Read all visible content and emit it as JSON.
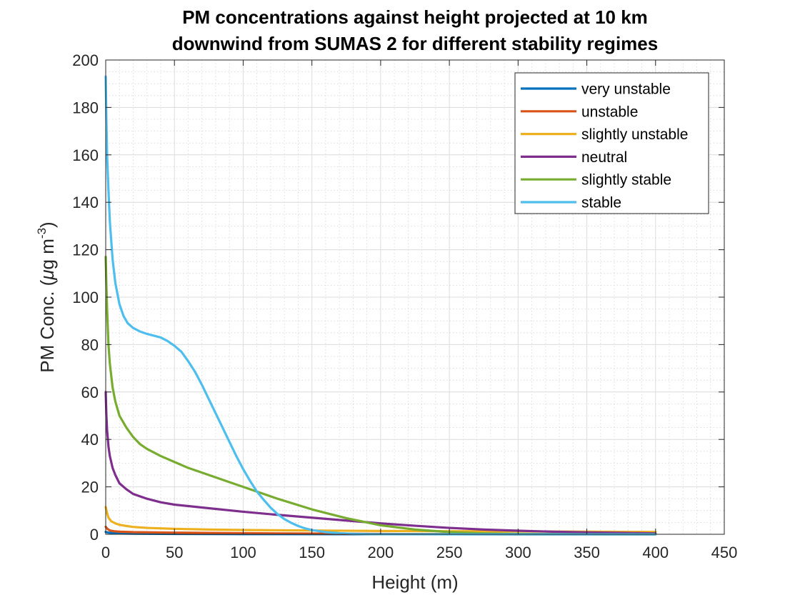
{
  "chart_data": {
    "type": "line",
    "title_line1": "PM concentrations against height projected at 10 km",
    "title_line2": "downwind from SUMAS 2 for different stability regimes",
    "xlabel": "Height (m)",
    "ylabel_main": "PM Conc. (",
    "ylabel_mu": "μ",
    "ylabel_unit": "g m",
    "ylabel_sup": "-3",
    "ylabel_close": ")",
    "xlim": [
      0,
      450
    ],
    "ylim": [
      0,
      200
    ],
    "x_ticks": [
      0,
      50,
      100,
      150,
      200,
      250,
      300,
      350,
      400,
      450
    ],
    "y_ticks": [
      0,
      20,
      40,
      60,
      80,
      100,
      120,
      140,
      160,
      180,
      200
    ],
    "grid": true,
    "minor_grid": true,
    "legend_position": "top-right",
    "series": [
      {
        "name": "very unstable",
        "color": "#0072BD",
        "points": [
          [
            0,
            1.0
          ],
          [
            2,
            0.7
          ],
          [
            5,
            0.5
          ],
          [
            10,
            0.35
          ],
          [
            20,
            0.25
          ],
          [
            50,
            0.15
          ],
          [
            100,
            0.08
          ],
          [
            200,
            0.03
          ],
          [
            300,
            0.01
          ],
          [
            400,
            0.0
          ]
        ]
      },
      {
        "name": "unstable",
        "color": "#D95319",
        "points": [
          [
            0,
            3.2
          ],
          [
            1,
            2.4
          ],
          [
            3,
            1.6
          ],
          [
            6,
            1.3
          ],
          [
            10,
            1.1
          ],
          [
            20,
            0.9
          ],
          [
            50,
            0.7
          ],
          [
            100,
            0.45
          ],
          [
            150,
            0.3
          ],
          [
            200,
            0.15
          ],
          [
            250,
            0.05
          ],
          [
            300,
            0.0
          ],
          [
            400,
            0.0
          ]
        ]
      },
      {
        "name": "slightly unstable",
        "color": "#EDB120",
        "points": [
          [
            0,
            11.5
          ],
          [
            1,
            9.0
          ],
          [
            2,
            7.0
          ],
          [
            4,
            5.5
          ],
          [
            7,
            4.6
          ],
          [
            10,
            4.0
          ],
          [
            15,
            3.5
          ],
          [
            20,
            3.1
          ],
          [
            30,
            2.7
          ],
          [
            50,
            2.3
          ],
          [
            75,
            2.0
          ],
          [
            100,
            1.8
          ],
          [
            150,
            1.6
          ],
          [
            200,
            1.4
          ],
          [
            250,
            1.3
          ],
          [
            300,
            1.2
          ],
          [
            350,
            1.1
          ],
          [
            400,
            1.0
          ]
        ]
      },
      {
        "name": "neutral",
        "color": "#7E2F8E",
        "points": [
          [
            0,
            60
          ],
          [
            0.5,
            50
          ],
          [
            1,
            44
          ],
          [
            2,
            37
          ],
          [
            3,
            33
          ],
          [
            5,
            28
          ],
          [
            7,
            25
          ],
          [
            10,
            21.5
          ],
          [
            15,
            19
          ],
          [
            20,
            17
          ],
          [
            30,
            15
          ],
          [
            40,
            13.5
          ],
          [
            50,
            12.5
          ],
          [
            75,
            11
          ],
          [
            100,
            9.5
          ],
          [
            125,
            8.2
          ],
          [
            150,
            7
          ],
          [
            175,
            5.8
          ],
          [
            200,
            4.6
          ],
          [
            225,
            3.6
          ],
          [
            250,
            2.7
          ],
          [
            275,
            2.0
          ],
          [
            300,
            1.5
          ],
          [
            325,
            1.1
          ],
          [
            350,
            0.8
          ],
          [
            375,
            0.6
          ],
          [
            400,
            0.4
          ]
        ]
      },
      {
        "name": "slightly stable",
        "color": "#77AC30",
        "points": [
          [
            0,
            117
          ],
          [
            0.5,
            105
          ],
          [
            1,
            95
          ],
          [
            2,
            80
          ],
          [
            3,
            72
          ],
          [
            5,
            62
          ],
          [
            7,
            56
          ],
          [
            10,
            50
          ],
          [
            15,
            45
          ],
          [
            20,
            41
          ],
          [
            25,
            38
          ],
          [
            30,
            36
          ],
          [
            40,
            33
          ],
          [
            50,
            30.5
          ],
          [
            60,
            28
          ],
          [
            75,
            25
          ],
          [
            90,
            22
          ],
          [
            100,
            20
          ],
          [
            125,
            15
          ],
          [
            150,
            10.5
          ],
          [
            175,
            6.8
          ],
          [
            200,
            3.8
          ],
          [
            225,
            2.0
          ],
          [
            250,
            0.9
          ],
          [
            275,
            0.4
          ],
          [
            300,
            0.15
          ],
          [
            350,
            0.02
          ],
          [
            400,
            0.0
          ]
        ]
      },
      {
        "name": "stable",
        "color": "#4DBEEE",
        "points": [
          [
            0,
            193
          ],
          [
            0.5,
            175
          ],
          [
            1,
            160
          ],
          [
            2,
            145
          ],
          [
            3,
            132
          ],
          [
            5,
            116
          ],
          [
            7,
            106
          ],
          [
            10,
            97
          ],
          [
            13,
            92
          ],
          [
            16,
            89
          ],
          [
            20,
            87
          ],
          [
            25,
            85.5
          ],
          [
            30,
            84.5
          ],
          [
            40,
            83
          ],
          [
            45,
            81.5
          ],
          [
            50,
            79.5
          ],
          [
            55,
            77
          ],
          [
            60,
            73
          ],
          [
            65,
            68.5
          ],
          [
            70,
            63
          ],
          [
            75,
            57
          ],
          [
            80,
            51
          ],
          [
            85,
            45
          ],
          [
            90,
            39
          ],
          [
            95,
            33
          ],
          [
            100,
            27.5
          ],
          [
            105,
            22.5
          ],
          [
            110,
            18
          ],
          [
            115,
            14.5
          ],
          [
            120,
            11.2
          ],
          [
            125,
            8.5
          ],
          [
            130,
            6.4
          ],
          [
            135,
            4.8
          ],
          [
            140,
            3.5
          ],
          [
            145,
            2.5
          ],
          [
            150,
            1.8
          ],
          [
            160,
            0.9
          ],
          [
            170,
            0.45
          ],
          [
            180,
            0.2
          ],
          [
            190,
            0.08
          ],
          [
            200,
            0.03
          ],
          [
            250,
            0.0
          ],
          [
            400,
            0.0
          ]
        ]
      }
    ]
  }
}
